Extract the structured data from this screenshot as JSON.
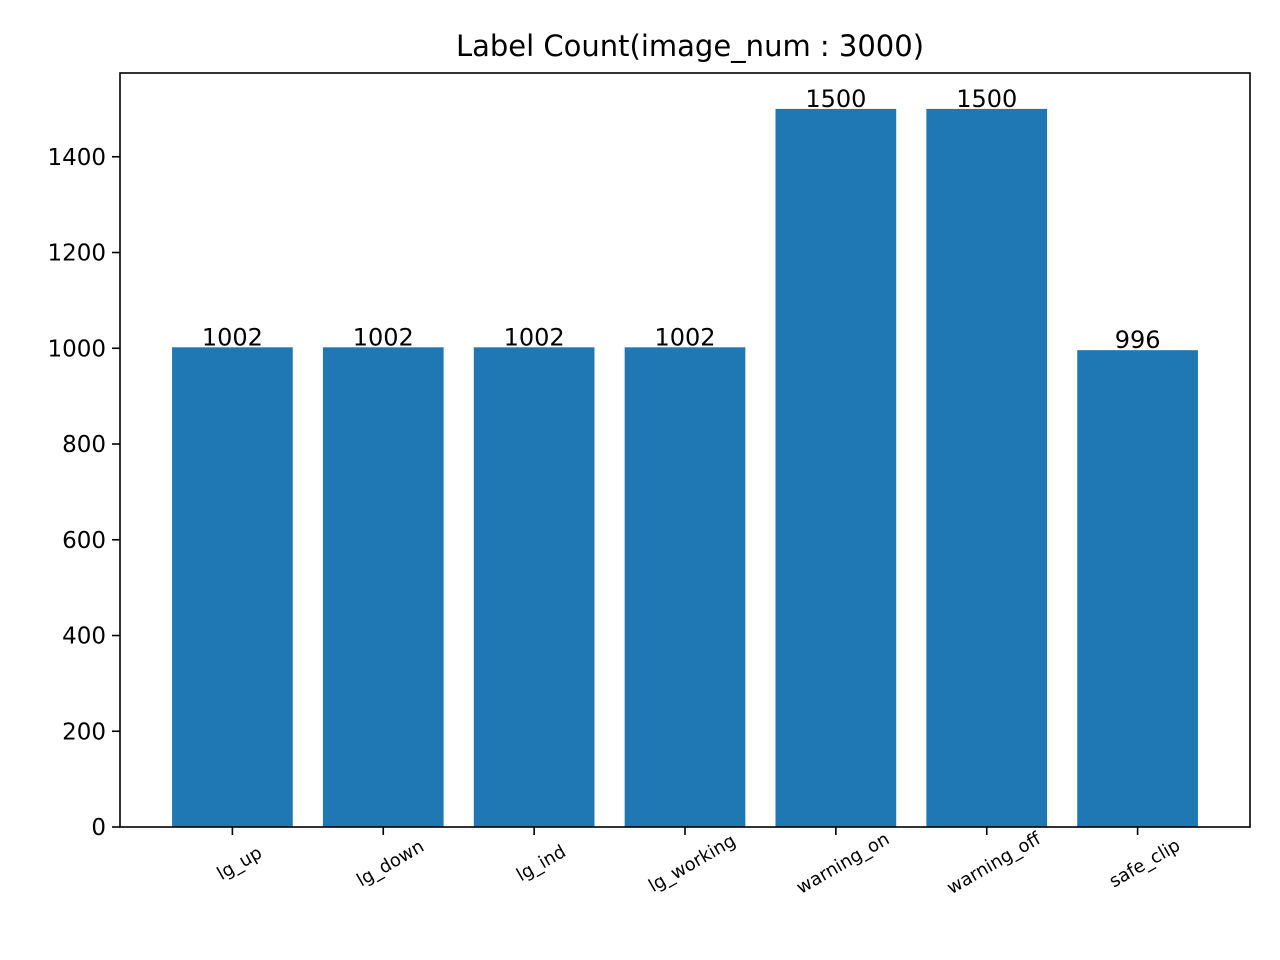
{
  "chart_data": {
    "type": "bar",
    "title": "Label Count(image_num : 3000)",
    "xlabel": "",
    "ylabel": "",
    "categories": [
      "lg_up",
      "lg_down",
      "lg_ind",
      "lg_working",
      "warning_on",
      "warning_off",
      "safe_clip"
    ],
    "values": [
      1002,
      1002,
      1002,
      1002,
      1500,
      1500,
      996
    ],
    "data_labels": [
      "1002",
      "1002",
      "1002",
      "1002",
      "1500",
      "1500",
      "996"
    ],
    "y_ticks": [
      0,
      200,
      400,
      600,
      800,
      1000,
      1200,
      1400
    ],
    "y_tick_labels": [
      "0",
      "200",
      "400",
      "600",
      "800",
      "1000",
      "1200",
      "1400"
    ],
    "ylim": [
      0,
      1575
    ],
    "grid": false,
    "bar_color": "#1f77b4",
    "x_tick_rotation_deg": -30
  }
}
